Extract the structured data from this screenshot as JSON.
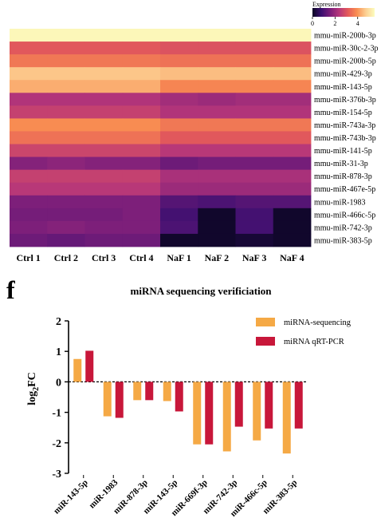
{
  "colors": {
    "sequencing": "#F5A945",
    "qpcr": "#C8173A",
    "axis": "#000000",
    "colormap": [
      "#0B0622",
      "#3B0F70",
      "#7B1E7A",
      "#B5367A",
      "#E45A5A",
      "#F98E52",
      "#FCCF92",
      "#FCFDBF"
    ]
  },
  "chart_data": [
    {
      "type": "heatmap",
      "legend_title": "Expression",
      "legend_ticks": [
        "0",
        "2",
        "4"
      ],
      "vmin": 0,
      "vmax": 5.5,
      "columns": [
        "Ctrl 1",
        "Ctrl 2",
        "Ctrl 3",
        "Ctrl 4",
        "NaF 1",
        "NaF 2",
        "NaF 3",
        "NaF 4"
      ],
      "rows": [
        "mmu-miR-200b-3p",
        "mmu-miR-30c-2-3p",
        "mmu-miR-200b-5p",
        "mmu-miR-429-3p",
        "mmu-miR-143-5p",
        "mmu-miR-376b-3p",
        "mmu-miR-154-5p",
        "mmu-miR-743a-3p",
        "mmu-miR-743b-3p",
        "mmu-miR-141-5p",
        "mmu-miR-31-3p",
        "mmu-miR-878-3p",
        "mmu-miR-467e-5p",
        "mmu-miR-1983",
        "mmu-miR-466c-5p",
        "mmu-miR-742-3p",
        "mmu-miR-383-5p"
      ],
      "values": [
        [
          5.4,
          5.4,
          5.4,
          5.4,
          5.4,
          5.4,
          5.4,
          5.4
        ],
        [
          3.1,
          3.1,
          3.1,
          3.1,
          3.0,
          3.0,
          3.0,
          3.0
        ],
        [
          3.6,
          3.6,
          3.6,
          3.6,
          3.5,
          3.5,
          3.5,
          3.5
        ],
        [
          4.6,
          4.6,
          4.6,
          4.6,
          4.5,
          4.5,
          4.5,
          4.5
        ],
        [
          4.3,
          4.3,
          4.3,
          4.3,
          3.8,
          3.8,
          3.8,
          3.8
        ],
        [
          2.3,
          2.3,
          2.3,
          2.3,
          2.1,
          2.0,
          2.1,
          2.1
        ],
        [
          2.6,
          2.6,
          2.6,
          2.6,
          2.3,
          2.3,
          2.3,
          2.3
        ],
        [
          3.9,
          3.9,
          3.9,
          3.9,
          3.6,
          3.6,
          3.6,
          3.6
        ],
        [
          3.5,
          3.5,
          3.5,
          3.5,
          3.1,
          3.1,
          3.1,
          3.1
        ],
        [
          2.7,
          2.7,
          2.7,
          2.7,
          2.4,
          2.4,
          2.4,
          2.4
        ],
        [
          1.7,
          1.8,
          1.7,
          1.7,
          1.4,
          1.5,
          1.5,
          1.5
        ],
        [
          2.6,
          2.6,
          2.6,
          2.6,
          2.2,
          2.2,
          2.2,
          2.2
        ],
        [
          2.4,
          2.4,
          2.4,
          2.4,
          2.0,
          2.0,
          2.0,
          2.0
        ],
        [
          1.6,
          1.6,
          1.6,
          1.6,
          1.1,
          1.0,
          1.1,
          1.1
        ],
        [
          1.5,
          1.5,
          1.5,
          1.6,
          0.9,
          0.1,
          0.9,
          0.1
        ],
        [
          1.6,
          1.7,
          1.6,
          1.6,
          1.0,
          0.1,
          0.9,
          0.1
        ],
        [
          1.4,
          1.3,
          1.4,
          1.4,
          0.1,
          0.1,
          0.2,
          0.1
        ]
      ]
    },
    {
      "type": "bar",
      "panel_label": "f",
      "title": "miRNA sequencing verificiation",
      "ylabel": "log2FC",
      "ylabel_base": "log",
      "ylabel_sub": "2",
      "ylabel_rest": "FC",
      "ylim": [
        -3,
        2
      ],
      "yticks": [
        "2",
        "1",
        "0",
        "-1",
        "-2",
        "-3"
      ],
      "legend_position": "top-right",
      "categories": [
        "miR-143-5p",
        "miR-1983",
        "miR-878-3p",
        "miR-143-5p",
        "miR-669f-3p",
        "miR-742-3p",
        "miR-466c-5p",
        "miR-383-5p"
      ],
      "series": [
        {
          "name": "miRNA-sequencing",
          "values": [
            0.75,
            -1.13,
            -0.6,
            -0.63,
            -2.05,
            -2.28,
            -1.92,
            -2.35
          ]
        },
        {
          "name": "miRNA  qRT-PCR",
          "values": [
            1.02,
            -1.18,
            -0.6,
            -0.97,
            -2.05,
            -1.47,
            -1.53,
            -1.53
          ]
        }
      ]
    }
  ]
}
